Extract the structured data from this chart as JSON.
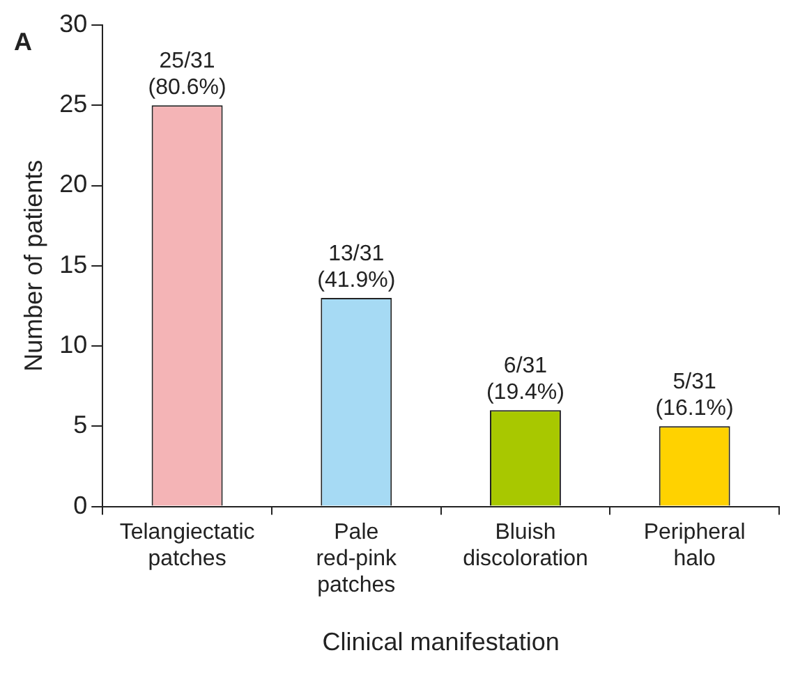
{
  "chart_data": {
    "type": "bar",
    "xlabel": "Clinical manifestation",
    "ylabel": "Number of patients",
    "annotations": [
      "A"
    ],
    "categories": [
      "Telangiectatic patches",
      "Pale red-pink patches",
      "Bluish discoloration",
      "Peripheral halo"
    ],
    "values": [
      25,
      13,
      6,
      5
    ],
    "colors": [
      "#f4b4b6",
      "#a6daf4",
      "#a8c800",
      "#ffd200"
    ],
    "value_labels": [
      "25/31 (80.6%)",
      "13/31 (41.9%)",
      "6/31 (19.4%)",
      "5/31 (16.1%)"
    ],
    "ylim": [
      0,
      30
    ],
    "yticks": [
      0,
      5,
      10,
      15,
      20,
      25,
      30
    ],
    "grid": false,
    "legend": false
  }
}
